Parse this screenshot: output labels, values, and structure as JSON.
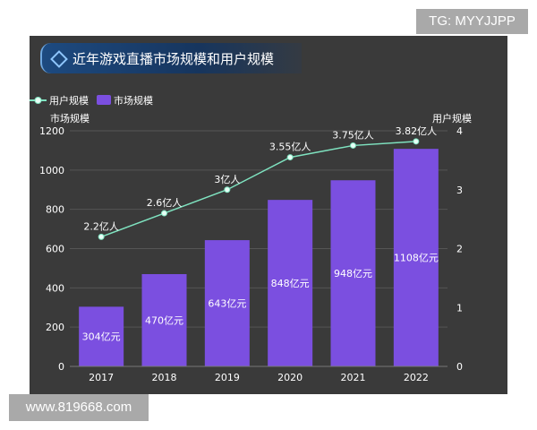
{
  "watermarks": {
    "top": "TG: MYYJJPP",
    "bottom": "www.819668.com"
  },
  "chart_data": {
    "type": "bar+line",
    "title": "近年游戏直播市场规模和用户规模",
    "categories": [
      "2017",
      "2018",
      "2019",
      "2020",
      "2021",
      "2022"
    ],
    "series": [
      {
        "name": "市场规模",
        "type": "bar",
        "axis": "left",
        "values": [
          304,
          470,
          643,
          848,
          948,
          1108
        ],
        "labels": [
          "304亿元",
          "470亿元",
          "643亿元",
          "848亿元",
          "948亿元",
          "1108亿元"
        ],
        "color": "#7b4fe0"
      },
      {
        "name": "用户规模",
        "type": "line",
        "axis": "right",
        "values": [
          2.2,
          2.6,
          3,
          3.55,
          3.75,
          3.82
        ],
        "labels": [
          "2.2亿人",
          "2.6亿人",
          "3亿人",
          "3.55亿人",
          "3.75亿人",
          "3.82亿人"
        ],
        "color": "#7fe3c0"
      }
    ],
    "ylabel": "市场规模",
    "ylim": [
      0,
      1200
    ],
    "yticks": [
      "0",
      "200",
      "400",
      "600",
      "800",
      "1000",
      "1200"
    ],
    "y2label": "用户规模",
    "y2lim": [
      0,
      4
    ],
    "y2ticks": [
      "0",
      "1",
      "2",
      "3",
      "4"
    ],
    "legend": "top-left",
    "grid": true
  }
}
